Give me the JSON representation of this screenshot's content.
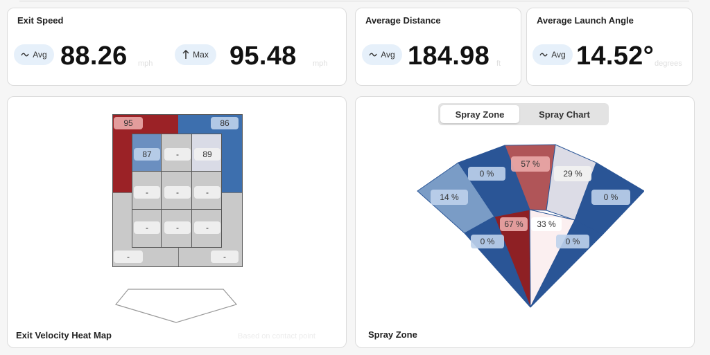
{
  "exit_speed": {
    "title": "Exit Speed",
    "avg_label": "Avg",
    "avg_value": "88.26",
    "avg_unit": "mph",
    "max_label": "Max",
    "max_value": "95.48",
    "max_unit": "mph"
  },
  "average_distance": {
    "title": "Average Distance",
    "avg_label": "Avg",
    "value": "184.98",
    "unit": "ft"
  },
  "average_launch_angle": {
    "title": "Average Launch Angle",
    "avg_label": "Avg",
    "value": "14.52°",
    "unit": "degrees"
  },
  "heat_map": {
    "title": "Exit Velocity Heat Map",
    "note": "Based on contact point",
    "outer": {
      "top_left": "95",
      "top_right": "86",
      "bottom_left": "-",
      "bottom_right": "-"
    },
    "inner": [
      "87",
      "-",
      "89",
      "-",
      "-",
      "-",
      "-",
      "-",
      "-"
    ],
    "colors": {
      "red": "#9b2226",
      "blue": "#3d6fae",
      "gray": "#c9c9c9"
    }
  },
  "spray": {
    "title": "Spray Zone",
    "tabs": [
      "Spray Zone",
      "Spray Chart"
    ],
    "active_tab": "Spray Zone",
    "outer_zones": [
      "14 %",
      "0 %",
      "57 %",
      "29 %",
      "0 %"
    ],
    "inner_zones": [
      "0 %",
      "67 %",
      "33 %",
      "0 %"
    ],
    "colors": {
      "dark_blue": "#2a5596",
      "light_blue": "#7a9cc6",
      "red": "#b05558",
      "dark_red": "#8e2024",
      "pale": "#dcdce6",
      "white": "#fbeff0"
    }
  }
}
